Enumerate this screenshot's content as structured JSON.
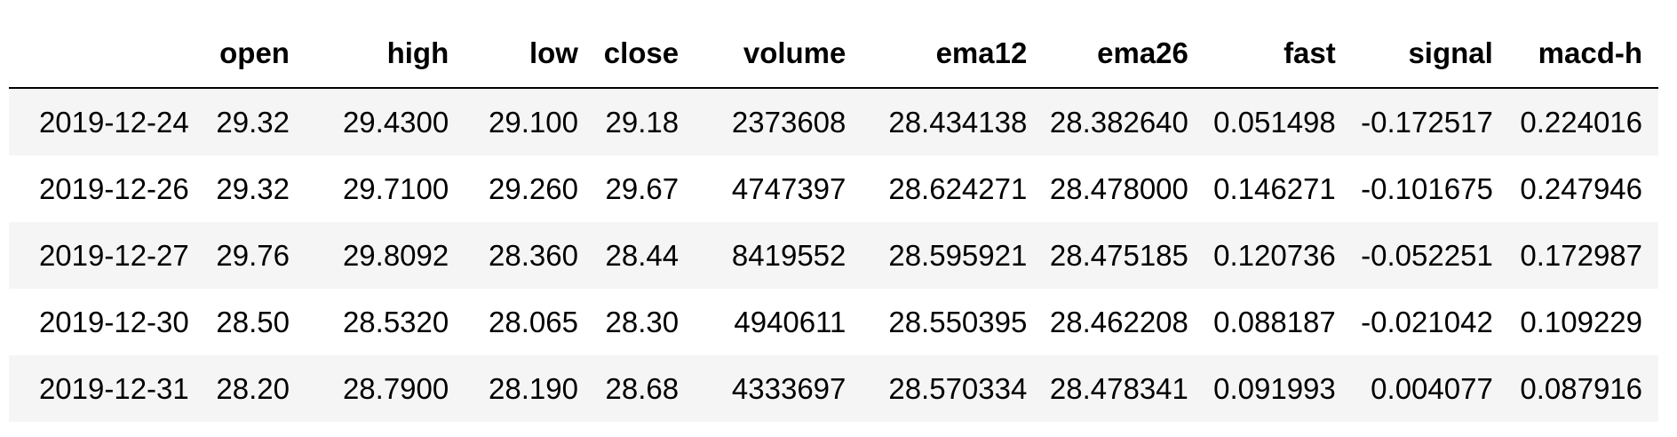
{
  "table": {
    "columns": [
      "",
      "open",
      "high",
      "low",
      "close",
      "volume",
      "ema12",
      "ema26",
      "fast",
      "signal",
      "macd-h"
    ],
    "rows": [
      [
        "2019-12-24",
        "29.32",
        "29.4300",
        "29.100",
        "29.18",
        "2373608",
        "28.434138",
        "28.382640",
        "0.051498",
        "-0.172517",
        "0.224016"
      ],
      [
        "2019-12-26",
        "29.32",
        "29.7100",
        "29.260",
        "29.67",
        "4747397",
        "28.624271",
        "28.478000",
        "0.146271",
        "-0.101675",
        "0.247946"
      ],
      [
        "2019-12-27",
        "29.76",
        "29.8092",
        "28.360",
        "28.44",
        "8419552",
        "28.595921",
        "28.475185",
        "0.120736",
        "-0.052251",
        "0.172987"
      ],
      [
        "2019-12-30",
        "28.50",
        "28.5320",
        "28.065",
        "28.30",
        "4940611",
        "28.550395",
        "28.462208",
        "0.088187",
        "-0.021042",
        "0.109229"
      ],
      [
        "2019-12-31",
        "28.20",
        "28.7900",
        "28.190",
        "28.68",
        "4333697",
        "28.570334",
        "28.478341",
        "0.091993",
        "0.004077",
        "0.087916"
      ]
    ]
  }
}
